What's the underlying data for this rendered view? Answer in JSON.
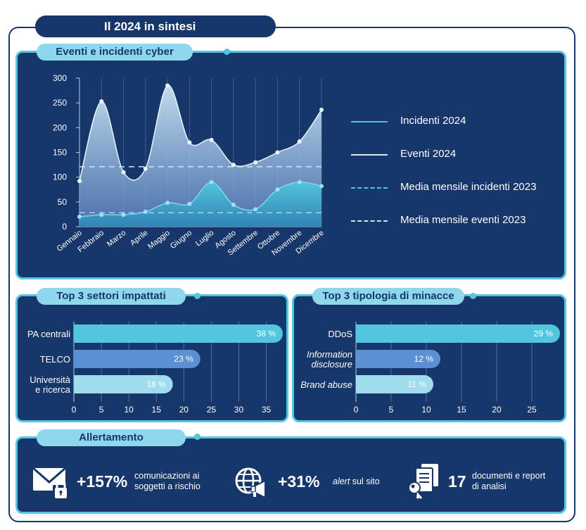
{
  "main_title": "Il 2024 in sintesi",
  "events_panel": {
    "title": "Eventi e incidenti cyber"
  },
  "sectors_panel": {
    "title": "Top 3 settori impattati"
  },
  "threats_panel": {
    "title": "Top 3 tipologia di minacce"
  },
  "alert_panel": {
    "title": "Allertamento",
    "items": [
      {
        "icon": "envelope-lock-icon",
        "value": "+157%",
        "desc_line1": "comunicazioni ai",
        "desc_line2": "soggetti a rischio"
      },
      {
        "icon": "globe-megaphone-icon",
        "value": "+31%",
        "desc_em": "alert",
        "desc_rest": " sul sito"
      },
      {
        "icon": "documents-key-icon",
        "value": "17",
        "desc_line1": "documenti e report",
        "desc_line2": "di analisi"
      }
    ]
  },
  "chart_data": [
    {
      "type": "area",
      "categories": [
        "Gennaio",
        "Febbraio",
        "Marzo",
        "Aprile",
        "Maggio",
        "Giugno",
        "Luglio",
        "Agosto",
        "Settembre",
        "Ottobre",
        "Novembre",
        "Dicembre"
      ],
      "series": [
        {
          "name": "Incidenti 2024",
          "values": [
            20,
            24,
            24,
            30,
            48,
            46,
            90,
            44,
            35,
            75,
            90,
            82
          ]
        },
        {
          "name": "Eventi 2024",
          "values": [
            92,
            253,
            110,
            117,
            285,
            170,
            175,
            125,
            130,
            150,
            172,
            236
          ]
        },
        {
          "name": "Media mensile incidenti 2023",
          "values": [
            28,
            28,
            28,
            28,
            28,
            28,
            28,
            28,
            28,
            28,
            28,
            28
          ]
        },
        {
          "name": "Media mensile eventi 2023",
          "values": [
            121,
            121,
            121,
            121,
            121,
            121,
            121,
            121,
            121,
            121,
            121,
            121
          ]
        }
      ],
      "yticks": [
        "0",
        "50",
        "100",
        "150",
        "200",
        "250",
        "300"
      ],
      "ylim": [
        0,
        300
      ],
      "grid": "vertical",
      "legend": "right",
      "colors": {
        "incidenti": "#52c4dc",
        "eventi": "#c9e6f3",
        "media": "#9fd8e8"
      }
    },
    {
      "type": "bar",
      "orientation": "horizontal",
      "categories": [
        "PA centrali",
        "TELCO",
        "Università e ricerca"
      ],
      "values": [
        38,
        23,
        18
      ],
      "labels": [
        "38 %",
        "23 %",
        "18 %"
      ],
      "xticks": [
        "0",
        "5",
        "10",
        "15",
        "20",
        "25",
        "30",
        "35"
      ],
      "xlim": [
        0,
        38
      ],
      "colors": [
        "#53c6df",
        "#5d8fd3",
        "#9edcee"
      ]
    },
    {
      "type": "bar",
      "orientation": "horizontal",
      "categories": [
        "DDoS",
        "Information disclosure",
        "Brand abuse"
      ],
      "values": [
        29,
        12,
        11
      ],
      "labels": [
        "29 %",
        "12 %",
        "11 %"
      ],
      "xticks": [
        "0",
        "5",
        "10",
        "15",
        "20",
        "25"
      ],
      "xlim": [
        0,
        29
      ],
      "colors": [
        "#53c6df",
        "#5d8fd3",
        "#9edcee"
      ]
    }
  ]
}
